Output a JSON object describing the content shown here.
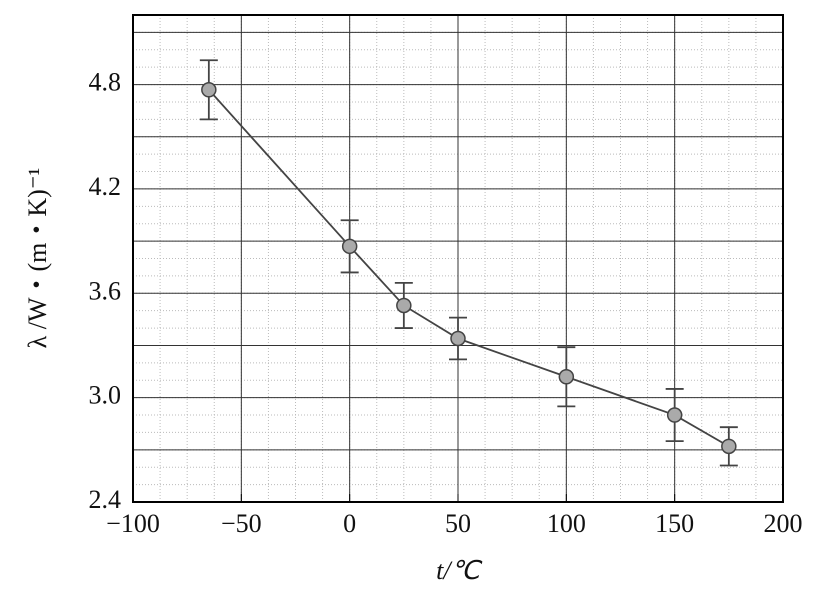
{
  "chart_data": {
    "type": "line",
    "x_label": "t/℃",
    "y_label": "λ /W・(m・K)⁻¹",
    "x": [
      -65,
      0,
      25,
      50,
      100,
      150,
      175
    ],
    "series": [
      {
        "color": "#444444",
        "marker_color": "#aaaaaa",
        "values": [
          4.77,
          3.87,
          3.53,
          3.34,
          3.12,
          2.9,
          2.72
        ],
        "errors": [
          0.17,
          0.15,
          0.13,
          0.12,
          0.17,
          0.15,
          0.11
        ]
      }
    ],
    "xlim": [
      -100,
      200
    ],
    "xticks": [
      {
        "value": -100,
        "label": "−100"
      },
      {
        "value": -50,
        "label": "−50"
      },
      0,
      50,
      100,
      150,
      200
    ],
    "ylim": [
      2.4,
      5.2
    ],
    "yticks": [
      2.4,
      {
        "value": 3.0,
        "label": "3.0"
      },
      3.6,
      4.2,
      4.8
    ],
    "y_major_grid": [
      2.7,
      3.3,
      3.9,
      4.5,
      5.1
    ],
    "grid": true
  }
}
